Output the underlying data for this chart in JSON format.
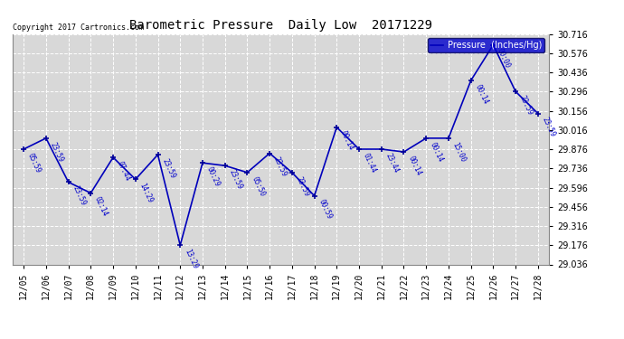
{
  "title": "Barometric Pressure  Daily Low  20171229",
  "copyright_text": "Copyright 2017 Cartronics.com",
  "legend_label": "Pressure  (Inches/Hg)",
  "x_labels": [
    "12/05",
    "12/06",
    "12/07",
    "12/08",
    "12/09",
    "12/10",
    "12/11",
    "12/12",
    "12/13",
    "12/14",
    "12/15",
    "12/16",
    "12/17",
    "12/18",
    "12/19",
    "12/20",
    "12/21",
    "12/22",
    "12/23",
    "12/24",
    "12/25",
    "12/26",
    "12/27",
    "12/28"
  ],
  "x_values": [
    0,
    1,
    2,
    3,
    4,
    5,
    6,
    7,
    8,
    9,
    10,
    11,
    12,
    13,
    14,
    15,
    16,
    17,
    18,
    19,
    20,
    21,
    22,
    23
  ],
  "y_values": [
    29.876,
    29.956,
    29.636,
    29.556,
    29.816,
    29.656,
    29.836,
    29.176,
    29.776,
    29.756,
    29.706,
    29.846,
    29.706,
    29.536,
    30.036,
    29.876,
    29.876,
    29.856,
    29.956,
    29.956,
    30.376,
    30.636,
    30.296,
    30.136
  ],
  "point_labels": [
    "05:59",
    "23:59",
    "23:59",
    "02:14",
    "07:44",
    "14:29",
    "23:59",
    "13:29",
    "00:29",
    "23:59",
    "05:50",
    "23:59",
    "23:59",
    "00:59",
    "00:14",
    "01:44",
    "23:44",
    "00:14",
    "00:14",
    "15:00",
    "00:14",
    "00:00",
    "23:59",
    "23:59"
  ],
  "ylim": [
    29.036,
    30.716
  ],
  "yticks": [
    29.036,
    29.176,
    29.316,
    29.456,
    29.596,
    29.736,
    29.876,
    30.016,
    30.156,
    30.296,
    30.436,
    30.576,
    30.716
  ],
  "line_color": "#0000bb",
  "marker_color": "#000099",
  "bg_color": "#ffffff",
  "plot_bg_color": "#d8d8d8",
  "grid_color": "#ffffff",
  "title_color": "#000000",
  "label_color": "#0000cc",
  "legend_bg": "#0000cc",
  "legend_text": "#ffffff"
}
